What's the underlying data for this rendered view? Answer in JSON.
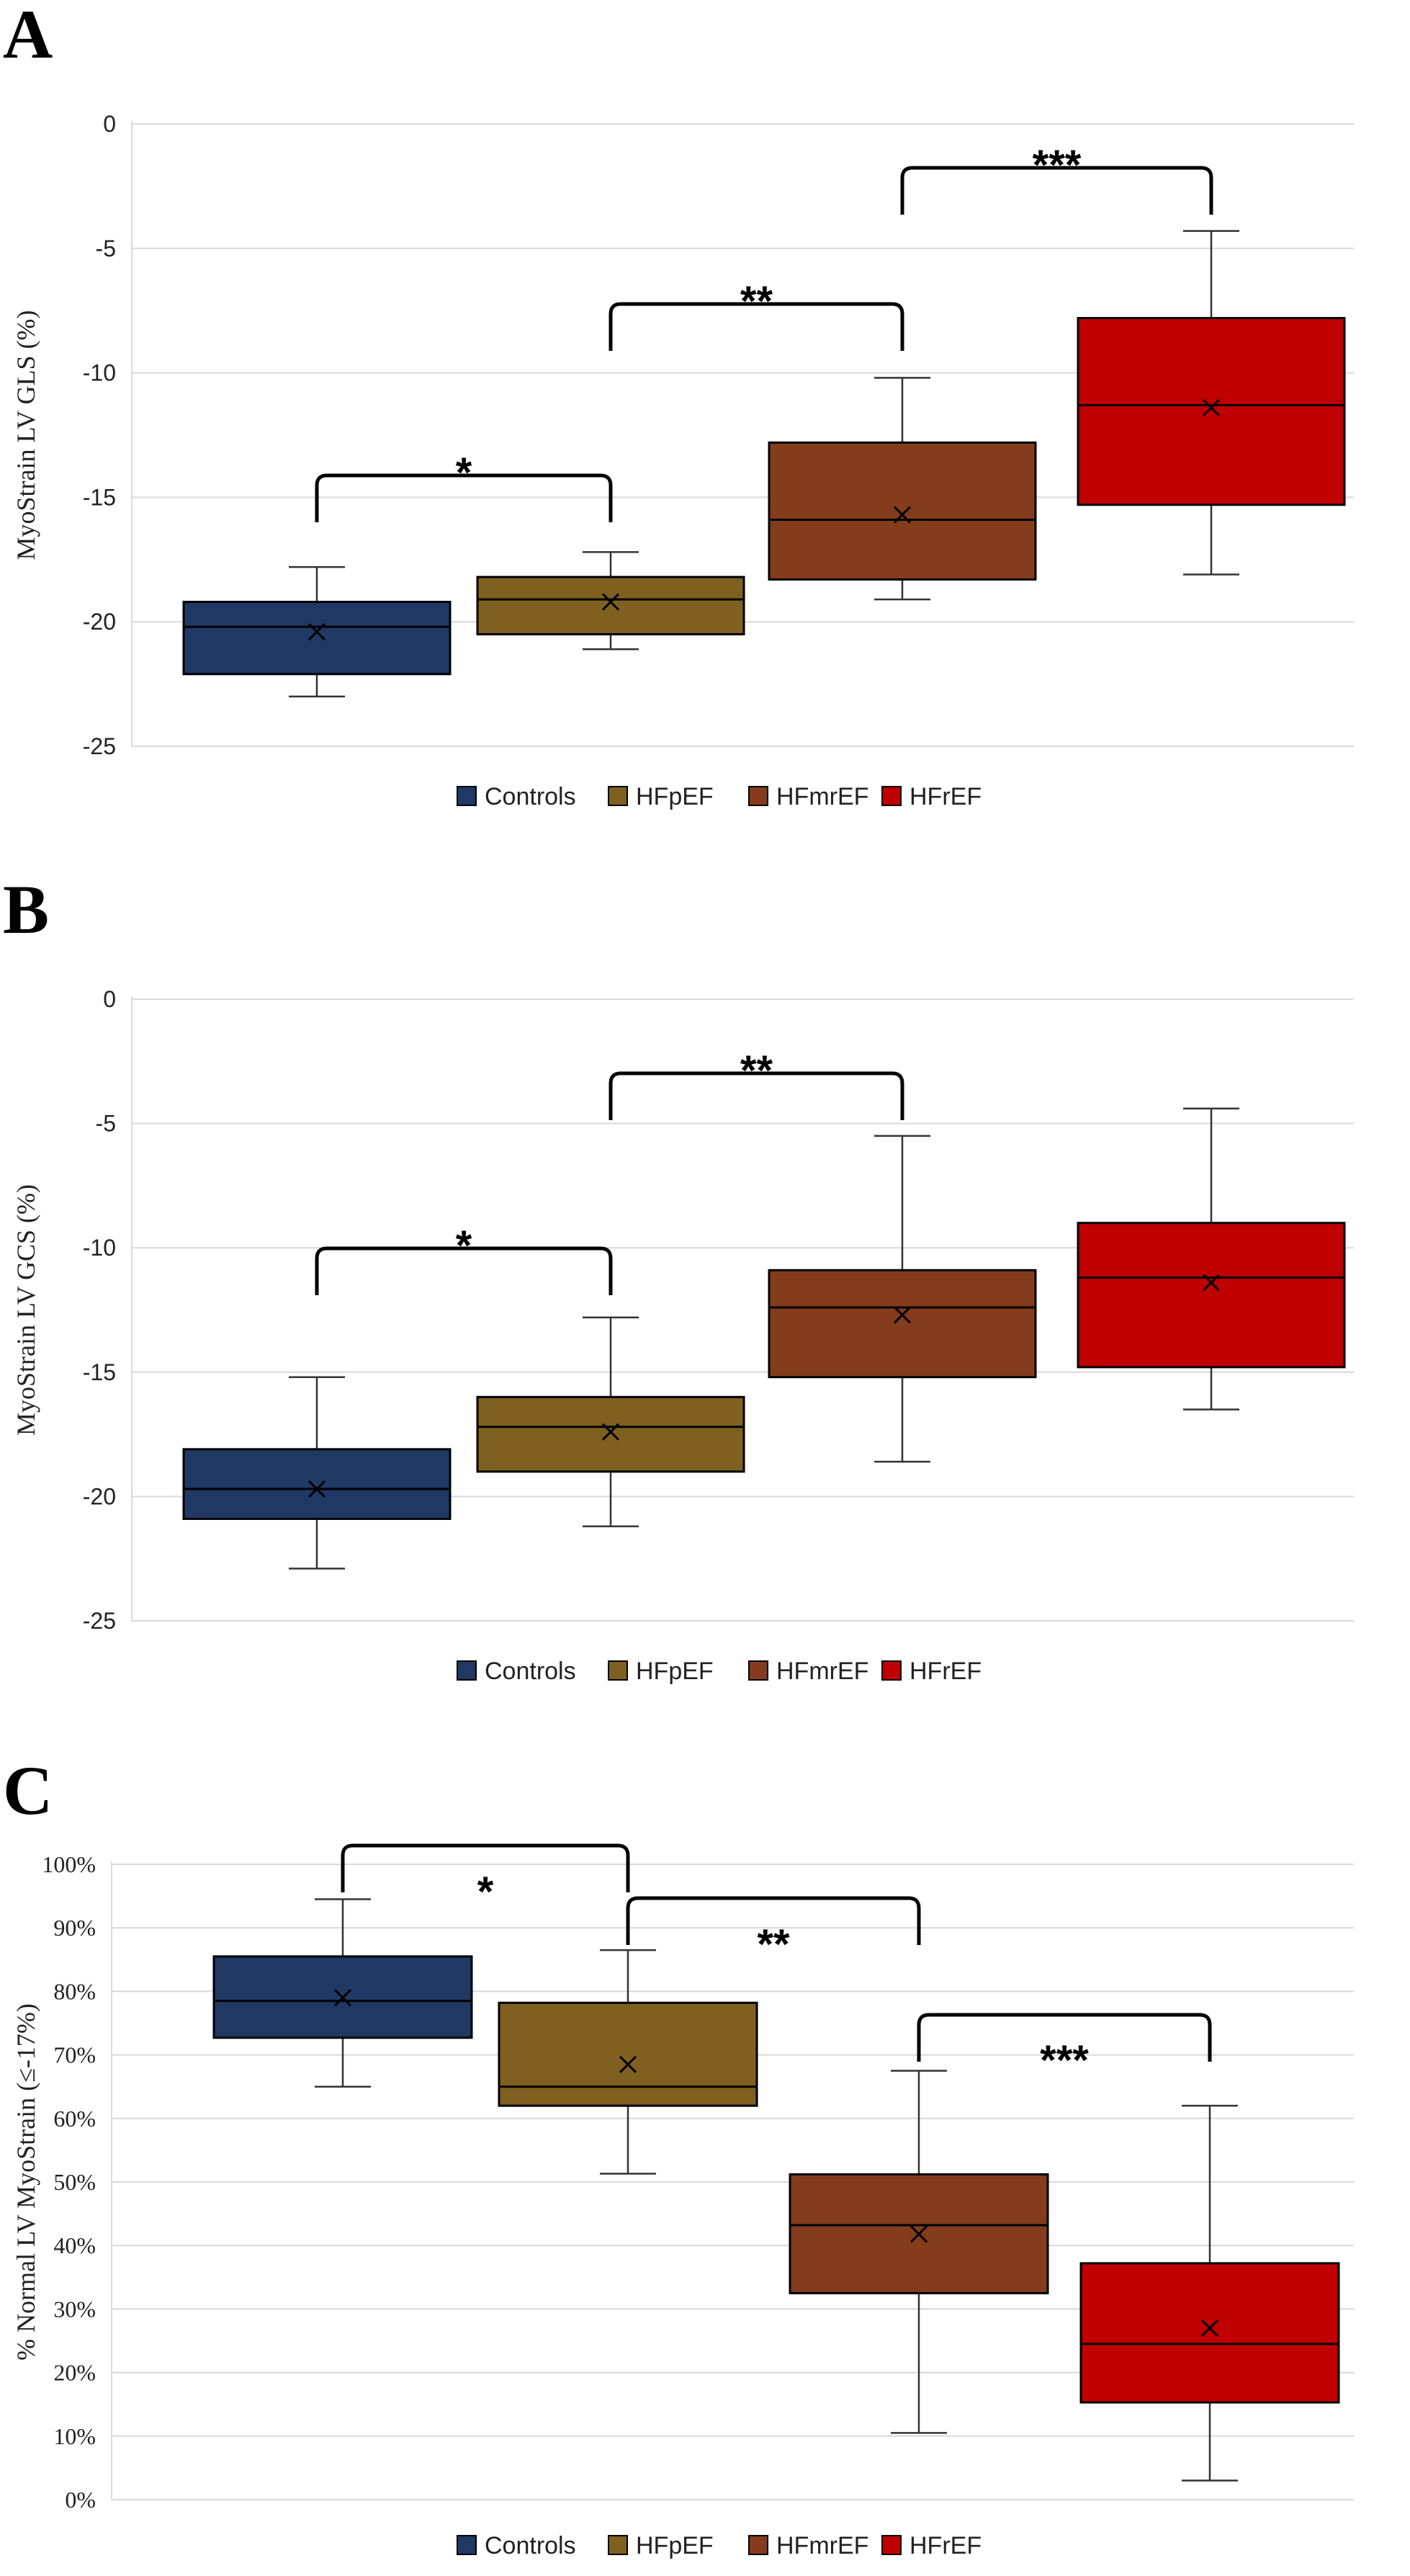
{
  "colors": {
    "Controls": "#1f3864",
    "HFpEF": "#7f6020",
    "HFmrEF": "#843c1c",
    "HFrEF": "#c00000"
  },
  "chart_data": [
    {
      "panel": "A",
      "type": "box",
      "ylabel": "MyoStrain LV GLS (%)",
      "xlabel": "",
      "ylim": [
        -25,
        0
      ],
      "yticks": [
        0,
        -5,
        -10,
        -15,
        -20,
        -25
      ],
      "grid": true,
      "legend_position": "bottom",
      "legend": [
        "Controls",
        "HFpEF",
        "HFmrEF",
        "HFrEF"
      ],
      "series": [
        {
          "name": "Controls",
          "min": -23.0,
          "q1": -22.1,
          "median": -20.2,
          "q3": -19.2,
          "max": -17.8,
          "mean": -20.4
        },
        {
          "name": "HFpEF",
          "min": -21.1,
          "q1": -20.5,
          "median": -19.1,
          "q3": -18.2,
          "max": -17.2,
          "mean": -19.2
        },
        {
          "name": "HFmrEF",
          "min": -19.1,
          "q1": -18.3,
          "median": -15.9,
          "q3": -12.8,
          "max": -10.2,
          "mean": -15.7
        },
        {
          "name": "HFrEF",
          "min": -18.1,
          "q1": -15.3,
          "median": -11.3,
          "q3": -7.8,
          "max": -4.3,
          "mean": -11.4
        }
      ],
      "significance": [
        {
          "from": 0,
          "to": 1,
          "label": "*"
        },
        {
          "from": 1,
          "to": 2,
          "label": "**"
        },
        {
          "from": 2,
          "to": 3,
          "label": "***"
        }
      ]
    },
    {
      "panel": "B",
      "type": "box",
      "ylabel": "MyoStrain LV GCS (%)",
      "xlabel": "",
      "ylim": [
        -25,
        0
      ],
      "yticks": [
        0,
        -5,
        -10,
        -15,
        -20,
        -25
      ],
      "grid": true,
      "legend_position": "bottom",
      "legend": [
        "Controls",
        "HFpEF",
        "HFmrEF",
        "HFrEF"
      ],
      "series": [
        {
          "name": "Controls",
          "min": -22.9,
          "q1": -20.9,
          "median": -19.7,
          "q3": -18.1,
          "max": -15.2,
          "mean": -19.7
        },
        {
          "name": "HFpEF",
          "min": -21.2,
          "q1": -19.0,
          "median": -17.2,
          "q3": -16.0,
          "max": -12.8,
          "mean": -17.4
        },
        {
          "name": "HFmrEF",
          "min": -18.6,
          "q1": -15.2,
          "median": -12.4,
          "q3": -10.9,
          "max": -5.5,
          "mean": -12.7
        },
        {
          "name": "HFrEF",
          "min": -16.5,
          "q1": -14.8,
          "median": -11.2,
          "q3": -9.0,
          "max": -4.4,
          "mean": -11.4
        }
      ],
      "significance": [
        {
          "from": 0,
          "to": 1,
          "label": "*"
        },
        {
          "from": 1,
          "to": 2,
          "label": "**"
        }
      ]
    },
    {
      "panel": "C",
      "type": "box",
      "ylabel": "% Normal LV MyoStrain (≤-17%)",
      "xlabel": "",
      "ylim": [
        0,
        100
      ],
      "yticks": [
        0,
        10,
        20,
        30,
        40,
        50,
        60,
        70,
        80,
        90,
        100
      ],
      "tick_suffix": "%",
      "grid": true,
      "legend_position": "bottom",
      "legend": [
        "Controls",
        "HFpEF",
        "HFmrEF",
        "HFrEF"
      ],
      "series": [
        {
          "name": "Controls",
          "min": 65,
          "q1": 72.7,
          "median": 78.5,
          "q3": 85.5,
          "max": 94.5,
          "mean": 79
        },
        {
          "name": "HFpEF",
          "min": 51.3,
          "q1": 62,
          "median": 65,
          "q3": 78.2,
          "max": 86.5,
          "mean": 68.5
        },
        {
          "name": "HFmrEF",
          "min": 10.5,
          "q1": 32.5,
          "median": 43.2,
          "q3": 51.2,
          "max": 67.5,
          "mean": 41.8
        },
        {
          "name": "HFrEF",
          "min": 3,
          "q1": 15.3,
          "median": 24.5,
          "q3": 37.2,
          "max": 62,
          "mean": 27
        }
      ],
      "significance": [
        {
          "from": 0,
          "to": 1,
          "label": "*"
        },
        {
          "from": 1,
          "to": 2,
          "label": "**"
        },
        {
          "from": 2,
          "to": 3,
          "label": "***"
        }
      ]
    }
  ]
}
